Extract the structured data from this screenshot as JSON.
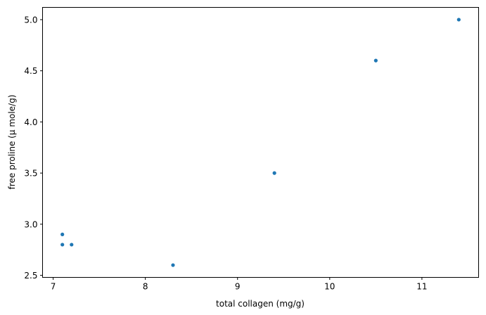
{
  "chart_data": {
    "type": "scatter",
    "title": "",
    "xlabel": "total collagen (mg/g)",
    "ylabel": "free proline (μ mole/g)",
    "xlim": [
      6.885,
      11.615
    ],
    "ylim": [
      2.48,
      5.12
    ],
    "xticks": [
      7,
      8,
      9,
      10,
      11
    ],
    "xtick_labels": [
      "7",
      "8",
      "9",
      "10",
      "11"
    ],
    "yticks": [
      2.5,
      3.0,
      3.5,
      4.0,
      4.5,
      5.0
    ],
    "ytick_labels": [
      "2.5",
      "3.0",
      "3.5",
      "4.0",
      "4.5",
      "5.0"
    ],
    "grid": false,
    "color": "#1f77b4",
    "points": [
      {
        "x": 7.1,
        "y": 2.9
      },
      {
        "x": 7.1,
        "y": 2.8
      },
      {
        "x": 7.2,
        "y": 2.8
      },
      {
        "x": 8.3,
        "y": 2.6
      },
      {
        "x": 9.4,
        "y": 3.5
      },
      {
        "x": 10.5,
        "y": 4.6
      },
      {
        "x": 11.4,
        "y": 5.0
      }
    ]
  }
}
